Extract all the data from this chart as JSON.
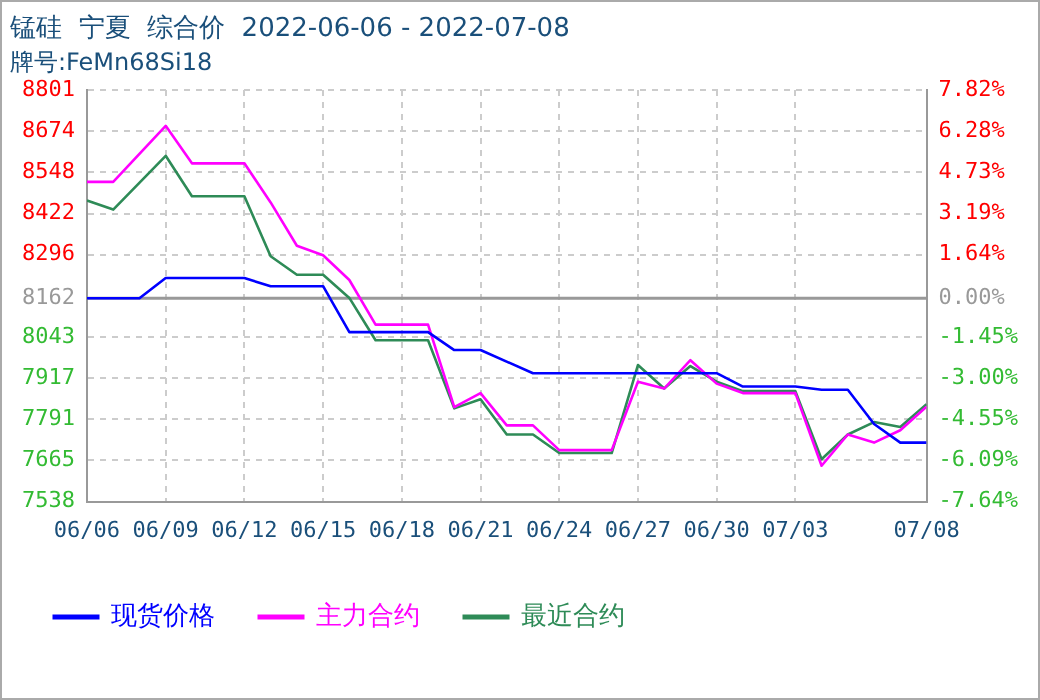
{
  "chart_data": {
    "type": "line",
    "title": "锰硅  宁夏  综合价  2022-06-06 - 2022-07-08",
    "subtitle": "牌号:FeMn68Si18",
    "xlim": [
      "2022-06-06",
      "2022-07-08"
    ],
    "xticks": [
      {
        "value": "2022-06-06",
        "label": "06/06"
      },
      {
        "value": "2022-06-09",
        "label": "06/09"
      },
      {
        "value": "2022-06-12",
        "label": "06/12"
      },
      {
        "value": "2022-06-15",
        "label": "06/15"
      },
      {
        "value": "2022-06-18",
        "label": "06/18"
      },
      {
        "value": "2022-06-21",
        "label": "06/21"
      },
      {
        "value": "2022-06-24",
        "label": "06/24"
      },
      {
        "value": "2022-06-27",
        "label": "06/27"
      },
      {
        "value": "2022-06-30",
        "label": "06/30"
      },
      {
        "value": "2022-07-03",
        "label": "07/03"
      },
      {
        "value": "2022-07-08",
        "label": "07/08"
      }
    ],
    "ylim": [
      7538,
      8801
    ],
    "yticks": [
      7538,
      7665,
      7791,
      7917,
      8043,
      8162,
      8296,
      8422,
      8548,
      8674,
      8801
    ],
    "y2lim": [
      -7.64,
      7.82
    ],
    "y2ticks": [
      {
        "value": -7.64,
        "label": "-7.64%"
      },
      {
        "value": -6.09,
        "label": "-6.09%"
      },
      {
        "value": -4.55,
        "label": "-4.55%"
      },
      {
        "value": -3.0,
        "label": "-3.00%"
      },
      {
        "value": -1.45,
        "label": "-1.45%"
      },
      {
        "value": 0,
        "label": "0.00%"
      },
      {
        "value": 1.64,
        "label": "1.64%"
      },
      {
        "value": 3.19,
        "label": "3.19%"
      },
      {
        "value": 4.73,
        "label": "4.73%"
      },
      {
        "value": 6.28,
        "label": "6.28%"
      },
      {
        "value": 7.82,
        "label": "7.82%"
      }
    ],
    "ref_lines": [
      {
        "axis": "y",
        "value": 8162,
        "color": "#999999"
      }
    ],
    "grid": true,
    "legend": "bottom",
    "marker": "none",
    "line_style": "solid",
    "series": [
      {
        "name": "现货价格",
        "color": "#0000ff",
        "x": [
          "2022-06-06",
          "2022-06-08",
          "2022-06-09",
          "2022-06-12",
          "2022-06-13",
          "2022-06-15",
          "2022-06-16",
          "2022-06-19",
          "2022-06-20",
          "2022-06-21",
          "2022-06-23",
          "2022-06-30",
          "2022-07-01",
          "2022-07-03",
          "2022-07-04",
          "2022-07-05",
          "2022-07-06",
          "2022-07-07",
          "2022-07-08"
        ],
        "values": [
          8162,
          8162,
          8224,
          8224,
          8199,
          8199,
          8058,
          8058,
          8003,
          8003,
          7932,
          7932,
          7891,
          7891,
          7881,
          7881,
          7776,
          7719,
          7719
        ]
      },
      {
        "name": "主力合约",
        "color": "#ff00ff",
        "x": [
          "2022-06-06",
          "2022-06-07",
          "2022-06-09",
          "2022-06-10",
          "2022-06-12",
          "2022-06-13",
          "2022-06-14",
          "2022-06-15",
          "2022-06-16",
          "2022-06-17",
          "2022-06-19",
          "2022-06-20",
          "2022-06-21",
          "2022-06-22",
          "2022-06-23",
          "2022-06-24",
          "2022-06-26",
          "2022-06-27",
          "2022-06-28",
          "2022-06-29",
          "2022-06-30",
          "2022-07-01",
          "2022-07-03",
          "2022-07-04",
          "2022-07-05",
          "2022-07-06",
          "2022-07-07",
          "2022-07-08"
        ],
        "values": [
          8519,
          8519,
          8691,
          8576,
          8576,
          8456,
          8323,
          8294,
          8218,
          8081,
          8081,
          7828,
          7871,
          7772,
          7772,
          7696,
          7696,
          7906,
          7885,
          7972,
          7900,
          7871,
          7871,
          7648,
          7744,
          7719,
          7757,
          7829
        ]
      },
      {
        "name": "最近合约",
        "color": "#2e8b57",
        "x": [
          "2022-06-06",
          "2022-06-07",
          "2022-06-09",
          "2022-06-10",
          "2022-06-12",
          "2022-06-13",
          "2022-06-14",
          "2022-06-15",
          "2022-06-16",
          "2022-06-17",
          "2022-06-19",
          "2022-06-20",
          "2022-06-21",
          "2022-06-22",
          "2022-06-23",
          "2022-06-24",
          "2022-06-26",
          "2022-06-27",
          "2022-06-28",
          "2022-06-29",
          "2022-06-30",
          "2022-07-01",
          "2022-07-03",
          "2022-07-04",
          "2022-07-05",
          "2022-07-06",
          "2022-07-07",
          "2022-07-08"
        ],
        "values": [
          8462,
          8434,
          8599,
          8475,
          8475,
          8291,
          8234,
          8234,
          8163,
          8033,
          8033,
          7824,
          7852,
          7744,
          7744,
          7687,
          7687,
          7957,
          7885,
          7954,
          7906,
          7877,
          7877,
          7668,
          7744,
          7782,
          7767,
          7837
        ]
      }
    ]
  }
}
